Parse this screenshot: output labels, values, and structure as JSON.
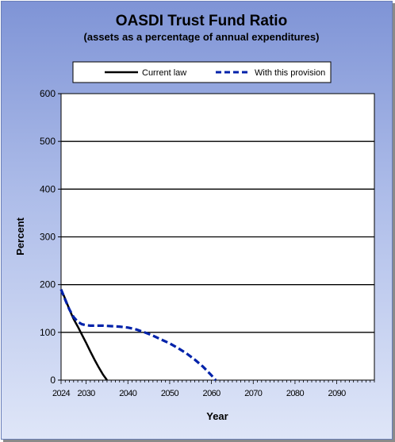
{
  "chart_data": {
    "type": "line",
    "title": "OASDI  Trust Fund Ratio",
    "subtitle": "(assets as a percentage of annual expenditures)",
    "xlabel": "Year",
    "ylabel": "Percent",
    "xlim": [
      2024,
      2099
    ],
    "ylim": [
      0,
      600
    ],
    "yticks": [
      0,
      100,
      200,
      300,
      400,
      500,
      600
    ],
    "xticks": [
      2024,
      2030,
      2040,
      2050,
      2060,
      2070,
      2080,
      2090
    ],
    "grid": "horizontal",
    "legend_position": "top",
    "series": [
      {
        "name": "Current law",
        "color": "#000000",
        "style": "solid",
        "x": [
          2024,
          2025,
          2026,
          2027,
          2028,
          2029,
          2030,
          2031,
          2032,
          2033,
          2034,
          2035
        ],
        "y": [
          190,
          170,
          148,
          128,
          112,
          95,
          78,
          60,
          43,
          27,
          12,
          0
        ]
      },
      {
        "name": "With this provision",
        "color": "#0022aa",
        "style": "dashed",
        "x": [
          2024,
          2025,
          2026,
          2027,
          2028,
          2029,
          2030,
          2031,
          2032,
          2034,
          2036,
          2038,
          2040,
          2042,
          2044,
          2046,
          2048,
          2050,
          2052,
          2054,
          2056,
          2058,
          2060,
          2061
        ],
        "y": [
          190,
          168,
          148,
          132,
          122,
          117,
          115,
          114,
          114,
          114,
          113,
          112,
          110,
          106,
          100,
          93,
          85,
          77,
          67,
          56,
          43,
          28,
          10,
          0
        ]
      }
    ]
  }
}
